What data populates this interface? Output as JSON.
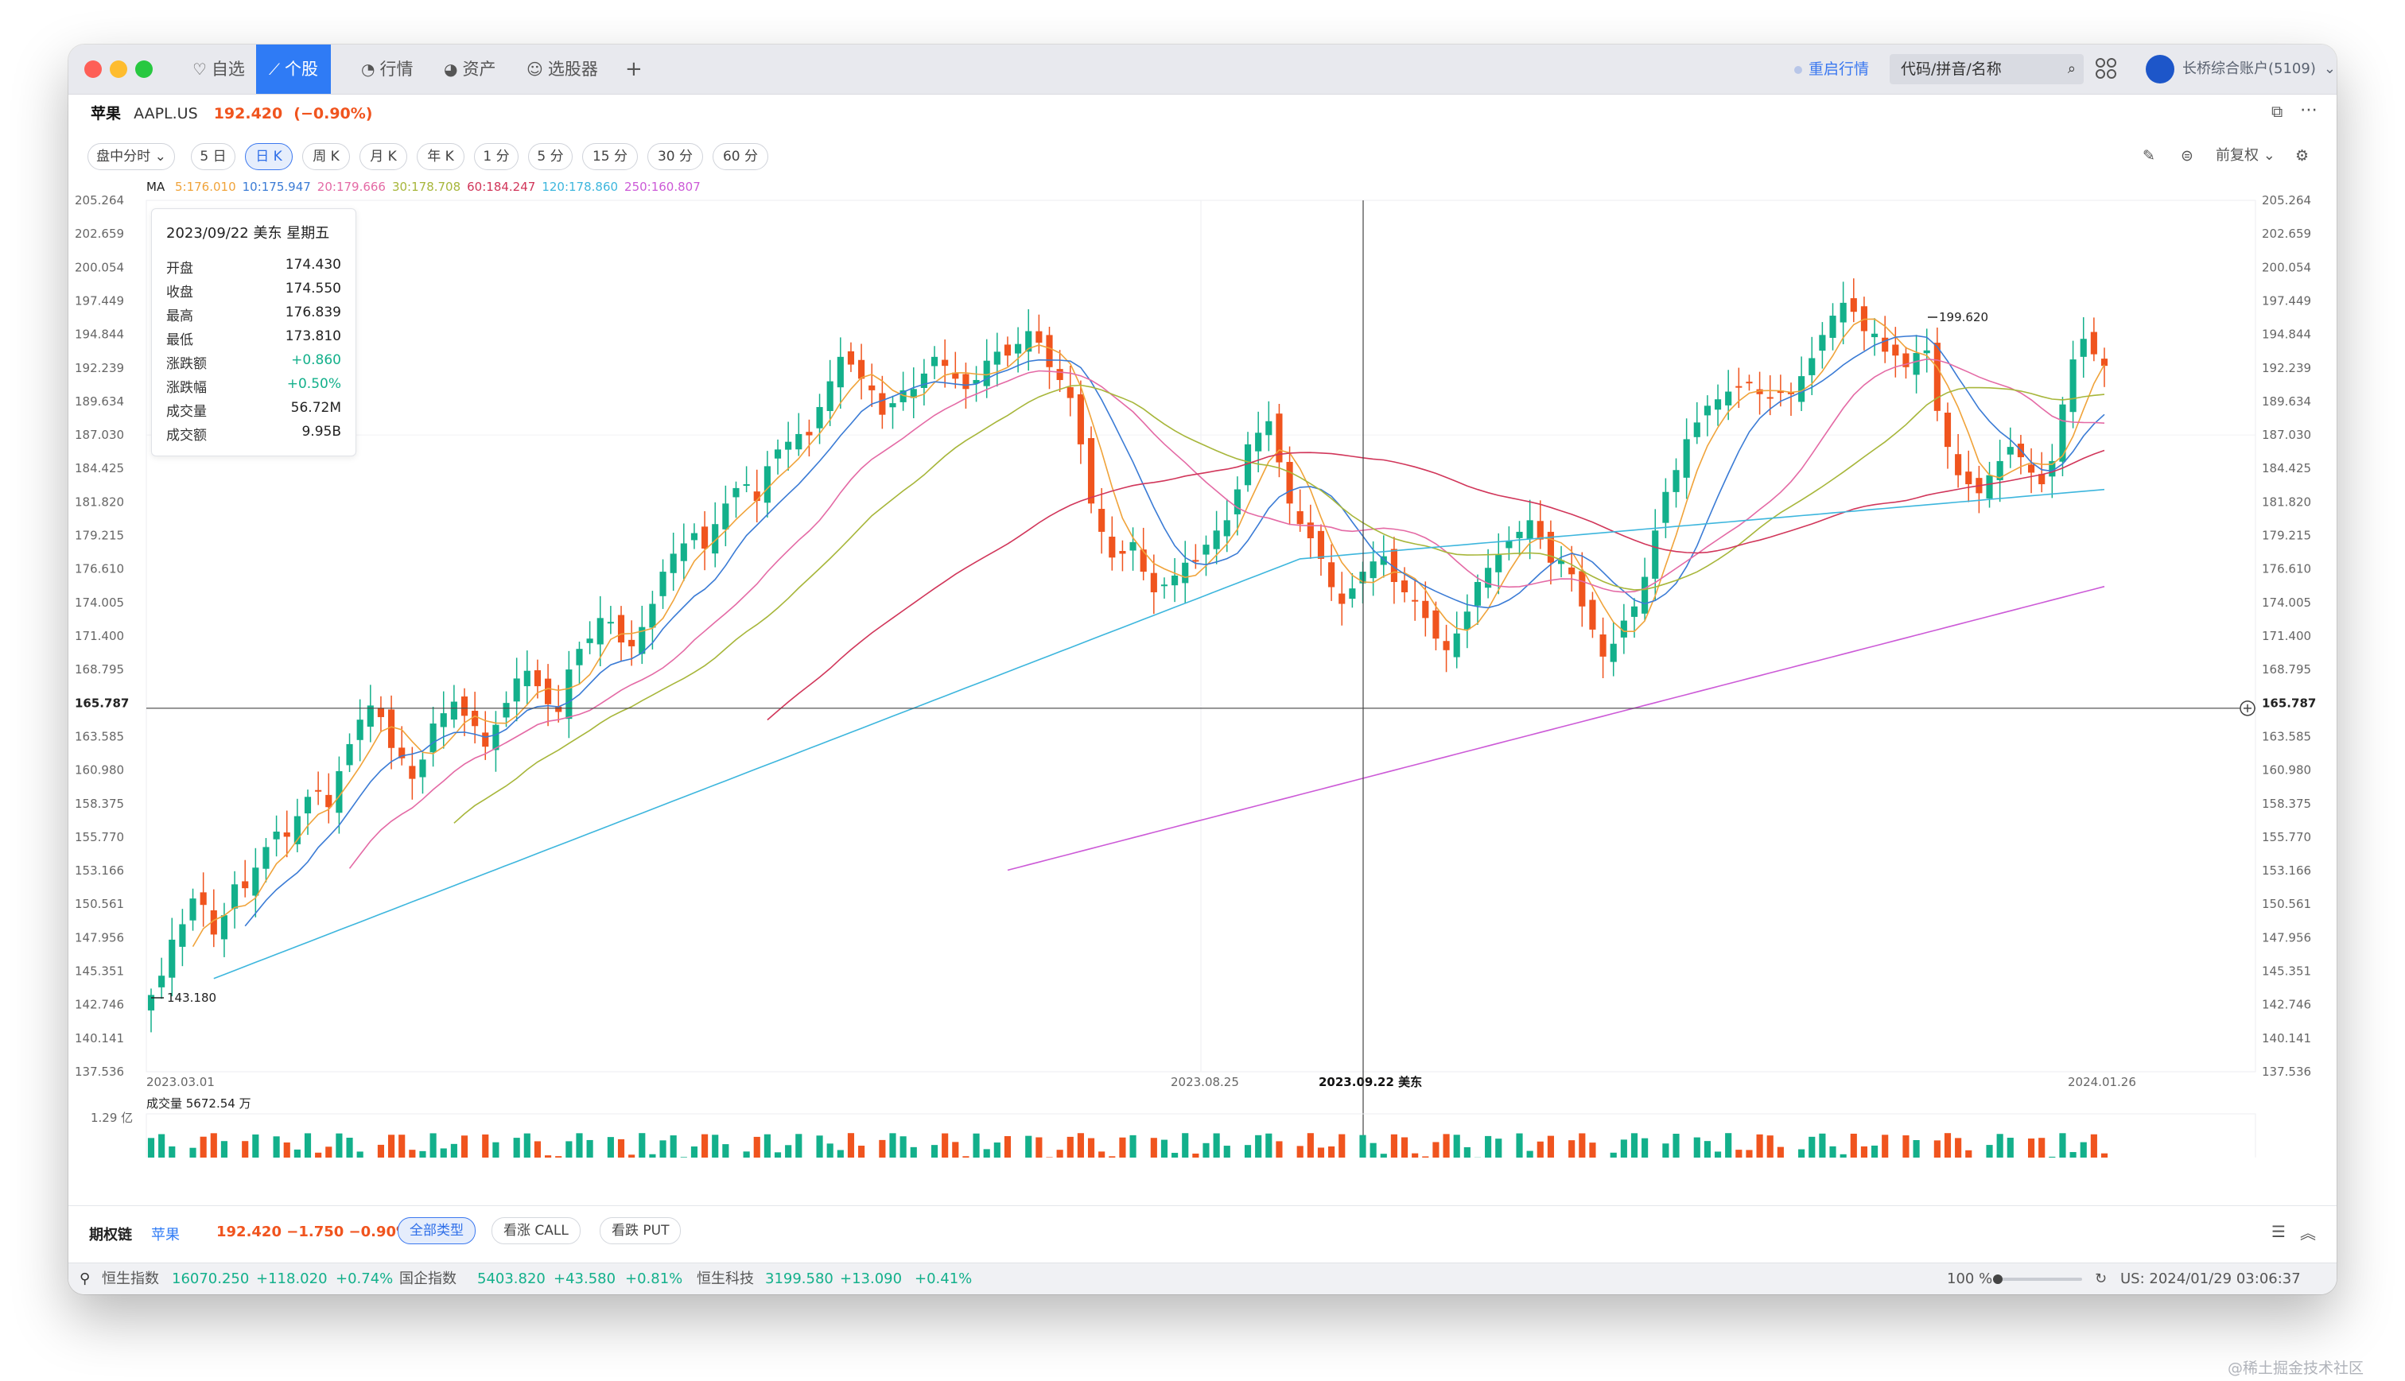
{
  "window": {
    "tabs": [
      {
        "label": "自选",
        "icon": "heart-icon"
      },
      {
        "label": "个股",
        "icon": "chart-line-icon"
      },
      {
        "label": "行情",
        "icon": "clock-icon"
      },
      {
        "label": "资产",
        "icon": "pie-icon"
      },
      {
        "label": "选股器",
        "icon": "robot-icon"
      },
      {
        "label": "+",
        "icon": "plus-icon"
      }
    ],
    "restart_label": "重启行情",
    "search_placeholder": "代码/拼音/名称",
    "account": "长桥综合账户(5109)"
  },
  "stock": {
    "name": "苹果",
    "code": "AAPL.US",
    "price": "192.420",
    "change": "(−0.90%)"
  },
  "periods": [
    "盘中分时",
    "5 日",
    "日 K",
    "周 K",
    "月 K",
    "年 K",
    "1 分",
    "5 分",
    "15 分",
    "30 分",
    "60 分"
  ],
  "adjust_label": "前复权",
  "ma": {
    "label": "MA",
    "items": [
      {
        "text": "5:176.010",
        "color": "#f0a33a"
      },
      {
        "text": "10:175.947",
        "color": "#3a7bd5"
      },
      {
        "text": "20:179.666",
        "color": "#e46aa5"
      },
      {
        "text": "30:178.708",
        "color": "#a7b63a"
      },
      {
        "text": "60:184.247",
        "color": "#d1365a"
      },
      {
        "text": "120:178.860",
        "color": "#3db6dd"
      },
      {
        "text": "250:160.807",
        "color": "#cc5ad7"
      }
    ]
  },
  "tooltip": {
    "date": "2023/09/22 美东 星期五",
    "rows": [
      {
        "k": "开盘",
        "v": "174.430",
        "color": "#222"
      },
      {
        "k": "收盘",
        "v": "174.550",
        "color": "#222"
      },
      {
        "k": "最高",
        "v": "176.839",
        "color": "#222"
      },
      {
        "k": "最低",
        "v": "173.810",
        "color": "#222"
      },
      {
        "k": "涨跌额",
        "v": "+0.860",
        "color": "#13b08b"
      },
      {
        "k": "涨跌幅",
        "v": "+0.50%",
        "color": "#13b08b"
      },
      {
        "k": "成交量",
        "v": "56.72M",
        "color": "#222"
      },
      {
        "k": "成交额",
        "v": "9.95B",
        "color": "#222"
      }
    ]
  },
  "chart_data": {
    "type": "candlestick",
    "y_ticks": [
      "205.264",
      "202.659",
      "200.054",
      "197.449",
      "194.844",
      "192.239",
      "189.634",
      "187.030",
      "184.425",
      "181.820",
      "179.215",
      "176.610",
      "174.005",
      "171.400",
      "168.795",
      "165.787",
      "163.585",
      "160.980",
      "158.375",
      "155.770",
      "153.166",
      "150.561",
      "147.956",
      "145.351",
      "142.746",
      "140.141",
      "137.536"
    ],
    "ylim": [
      137.536,
      205.264
    ],
    "crosshair_price": "165.787",
    "crosshair_date": "2023.09.22 美东",
    "x_labels": [
      "2023.03.01",
      "2023.08.25",
      "2024.01.26"
    ],
    "max_label": "199.620",
    "min_label": "143.180",
    "volume_label": "成交量",
    "volume_value": "5672.54 万",
    "volume_axis": "1.29 亿",
    "up_color": "#13b08b",
    "down_color": "#f0541e",
    "closes": [
      143.5,
      145.0,
      147.8,
      149.0,
      151.0,
      150.5,
      148.2,
      149.7,
      152.1,
      151.8,
      153.4,
      155.0,
      156.2,
      155.8,
      157.4,
      158.9,
      159.4,
      158.1,
      160.9,
      163.0,
      164.9,
      166.0,
      165.1,
      162.7,
      161.9,
      160.3,
      161.8,
      164.6,
      165.4,
      166.3,
      165.2,
      164.4,
      162.8,
      164.5,
      166.2,
      168.1,
      168.7,
      167.5,
      166.1,
      165.5,
      168.8,
      170.4,
      171.2,
      172.8,
      172.5,
      170.9,
      170.6,
      172.1,
      173.9,
      176.4,
      177.8,
      178.6,
      179.4,
      178.2,
      180.1,
      181.7,
      182.9,
      183.2,
      181.9,
      184.6,
      185.9,
      186.5,
      187.1,
      187.0,
      189.2,
      191.2,
      193.1,
      192.5,
      191.4,
      190.5,
      188.6,
      189.5,
      190.5,
      190.6,
      191.8,
      193.1,
      192.4,
      191.4,
      190.6,
      191.3,
      192.8,
      193.5,
      193.2,
      194.1,
      195.1,
      194.2,
      192.3,
      191.3,
      189.9,
      186.3,
      181.7,
      179.5,
      177.5,
      177.8,
      178.7,
      176.4,
      174.8,
      175.4,
      176.1,
      177.1,
      177.2,
      178.5,
      179.6,
      180.4,
      182.8,
      186.3,
      187.2,
      188.1,
      184.9,
      181.7,
      180.1,
      179.0,
      177.4,
      175.2,
      173.9,
      175.1,
      176.4,
      177.2,
      177.6,
      175.6,
      174.8,
      174.1,
      172.8,
      171.2,
      170.3,
      171.6,
      173.3,
      175.6,
      176.7,
      177.7,
      178.8,
      179.5,
      180.4,
      178.9,
      177.1,
      177.3,
      176.2,
      173.7,
      171.9,
      169.8,
      170.8,
      172.6,
      173.7,
      176.0,
      179.6,
      182.6,
      184.3,
      186.7,
      188.0,
      189.3,
      189.8,
      190.4,
      190.8,
      191.1,
      190.2,
      189.9,
      190.3,
      190.2,
      191.6,
      193.0,
      194.8,
      196.3,
      197.3,
      196.6,
      195.1,
      194.9,
      193.5,
      193.2,
      192.3,
      193.4,
      193.6,
      188.9,
      186.1,
      183.9,
      183.2,
      182.5,
      183.9,
      185.0,
      186.1,
      185.3,
      184.1,
      183.2,
      185.0,
      189.4,
      192.9,
      194.5,
      193.3,
      192.4
    ],
    "ma_series": [
      "MA5",
      "MA10",
      "MA20",
      "MA30",
      "MA60",
      "MA120",
      "MA250"
    ]
  },
  "optionbar": {
    "title": "期权链",
    "stock": "苹果",
    "quote": "192.420 −1.750 −0.90%",
    "filters": [
      "全部类型",
      "看涨 CALL",
      "看跌 PUT"
    ]
  },
  "statusbar": {
    "indices": [
      {
        "name": "恒生指数",
        "value": "16070.250",
        "chg": "+118.020",
        "pct": "+0.74%"
      },
      {
        "name": "国企指数",
        "value": "5403.820",
        "chg": "+43.580",
        "pct": "+0.81%"
      },
      {
        "name": "恒生科技",
        "value": "3199.580",
        "chg": "+13.090",
        "pct": "+0.41%"
      }
    ],
    "zoom": "100 %",
    "time": "US: 2024/01/29 03:06:37"
  },
  "watermark": "@稀土掘金技术社区"
}
